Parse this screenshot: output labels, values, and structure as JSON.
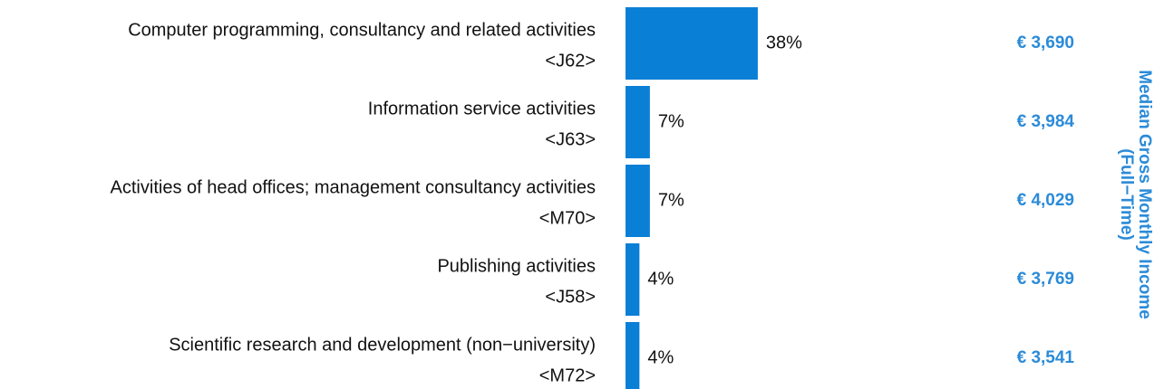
{
  "chart_data": {
    "type": "bar",
    "orientation": "horizontal",
    "categories": [
      "Computer programming, consultancy and related activities",
      "Information service activities",
      "Activities of head offices; management consultancy activities",
      "Publishing activities",
      "Scientific research and development (non−university)"
    ],
    "codes": [
      "<J62>",
      "<J63>",
      "<M70>",
      "<J58>",
      "<M72>"
    ],
    "values": [
      38,
      7,
      7,
      4,
      4
    ],
    "value_labels": [
      "38%",
      "7%",
      "7%",
      "4%",
      "4%"
    ],
    "color": "#0a7fd6",
    "income": [
      3690,
      3984,
      4029,
      3769,
      3541
    ],
    "income_labels": [
      "€ 3,690",
      "€ 3,984",
      "€ 4,029",
      "€ 3,769",
      "€ 3,541"
    ],
    "income_color": "#2b8bd8",
    "income_title": [
      "Median Gross Monthly Income",
      "(Full−Time)"
    ]
  }
}
